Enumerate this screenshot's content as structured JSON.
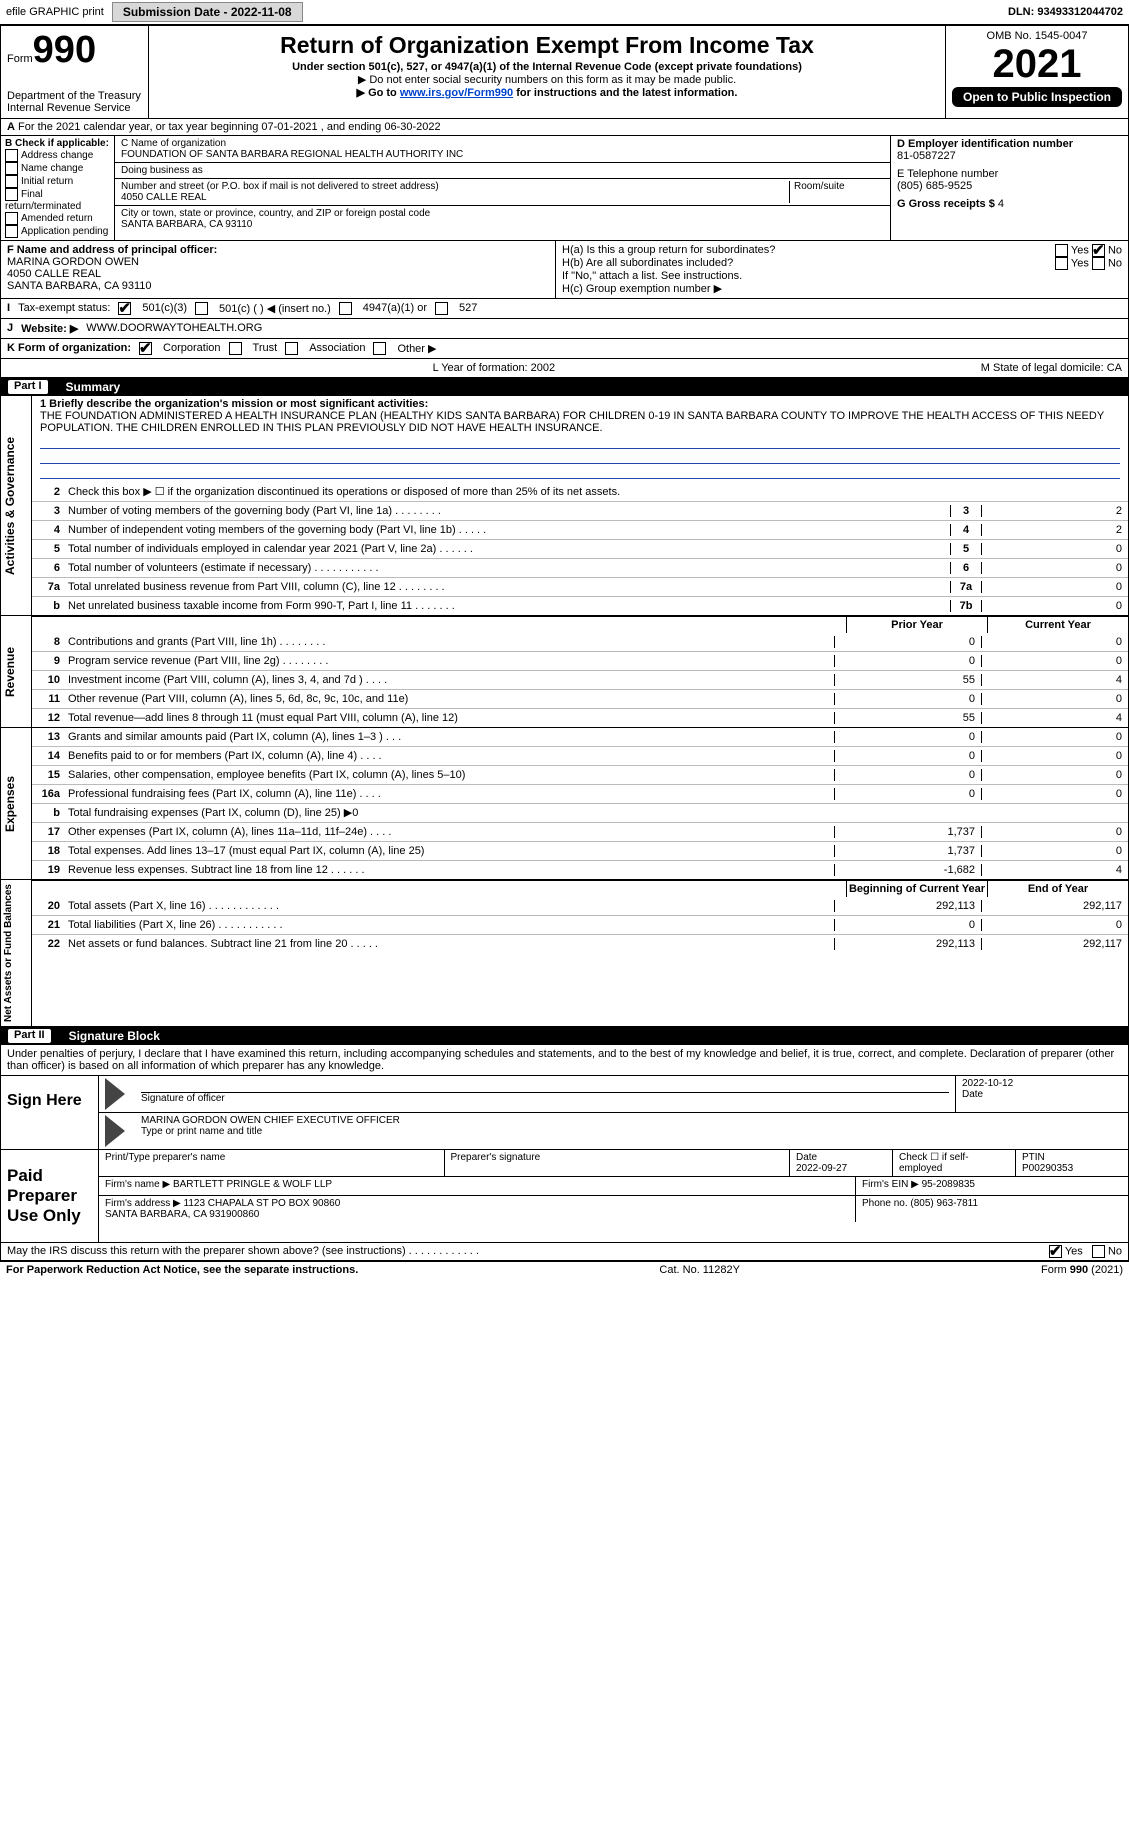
{
  "top": {
    "efile": "efile GRAPHIC print",
    "submission_label": "Submission Date - 2022-11-08",
    "dln_label": "DLN: 93493312044702"
  },
  "header": {
    "form_word": "Form",
    "form_num": "990",
    "dept": "Department of the Treasury",
    "irs": "Internal Revenue Service",
    "title": "Return of Organization Exempt From Income Tax",
    "sub1": "Under section 501(c), 527, or 4947(a)(1) of the Internal Revenue Code (except private foundations)",
    "sub2": "▶ Do not enter social security numbers on this form as it may be made public.",
    "sub3_pre": "▶ Go to ",
    "sub3_link": "www.irs.gov/Form990",
    "sub3_post": " for instructions and the latest information.",
    "omb": "OMB No. 1545-0047",
    "year": "2021",
    "open": "Open to Public Inspection"
  },
  "row_a": "For the 2021 calendar year, or tax year beginning 07-01-2021   , and ending 06-30-2022",
  "box_b": {
    "label": "B Check if applicable:",
    "items": [
      "Address change",
      "Name change",
      "Initial return",
      "Final return/terminated",
      "Amended return",
      "Application pending"
    ]
  },
  "box_c": {
    "name_label": "C Name of organization",
    "name": "FOUNDATION OF SANTA BARBARA REGIONAL HEALTH AUTHORITY INC",
    "dba_label": "Doing business as",
    "addr_label": "Number and street (or P.O. box if mail is not delivered to street address)",
    "room_label": "Room/suite",
    "addr": "4050 CALLE REAL",
    "city_label": "City or town, state or province, country, and ZIP or foreign postal code",
    "city": "SANTA BARBARA, CA  93110"
  },
  "box_d": {
    "label": "D Employer identification number",
    "ein": "81-0587227"
  },
  "box_e": {
    "label": "E Telephone number",
    "phone": "(805) 685-9525"
  },
  "box_g": {
    "label": "G Gross receipts $",
    "val": "4"
  },
  "box_f": {
    "label": "F Name and address of principal officer:",
    "name": "MARINA GORDON OWEN",
    "addr1": "4050 CALLE REAL",
    "addr2": "SANTA BARBARA, CA  93110"
  },
  "box_h": {
    "a": "H(a)  Is this a group return for subordinates?",
    "b": "H(b)  Are all subordinates included?",
    "bnote": "If \"No,\" attach a list. See instructions.",
    "c": "H(c)  Group exemption number ▶",
    "yes": "Yes",
    "no": "No"
  },
  "status": {
    "label": "Tax-exempt status:",
    "opts": [
      "501(c)(3)",
      "501(c) (  ) ◀ (insert no.)",
      "4947(a)(1) or",
      "527"
    ]
  },
  "website": {
    "label": "Website: ▶",
    "val": "WWW.DOORWAYTOHEALTH.ORG"
  },
  "row_k": {
    "label": "K Form of organization:",
    "opts": [
      "Corporation",
      "Trust",
      "Association",
      "Other ▶"
    ]
  },
  "row_l": {
    "year_label": "L Year of formation: 2002",
    "state_label": "M State of legal domicile: CA"
  },
  "part1": {
    "num": "Part I",
    "title": "Summary"
  },
  "mission": {
    "label": "1  Briefly describe the organization's mission or most significant activities:",
    "text": "THE FOUNDATION ADMINISTERED A HEALTH INSURANCE PLAN (HEALTHY KIDS SANTA BARBARA) FOR CHILDREN 0-19 IN SANTA BARBARA COUNTY TO IMPROVE THE HEALTH ACCESS OF THIS NEEDY POPULATION. THE CHILDREN ENROLLED IN THIS PLAN PREVIOUSLY DID NOT HAVE HEALTH INSURANCE."
  },
  "gov_lines": [
    {
      "n": "2",
      "d": "Check this box ▶ ☐  if the organization discontinued its operations or disposed of more than 25% of its net assets."
    },
    {
      "n": "3",
      "d": "Number of voting members of the governing body (Part VI, line 1a)  .    .    .    .    .    .    .    .",
      "box": "3",
      "v": "2"
    },
    {
      "n": "4",
      "d": "Number of independent voting members of the governing body (Part VI, line 1b)   .    .    .    .    .",
      "box": "4",
      "v": "2"
    },
    {
      "n": "5",
      "d": "Total number of individuals employed in calendar year 2021 (Part V, line 2a)   .    .    .    .    .    .",
      "box": "5",
      "v": "0"
    },
    {
      "n": "6",
      "d": "Total number of volunteers (estimate if necessary)    .    .    .    .    .    .    .    .    .    .    .",
      "box": "6",
      "v": "0"
    },
    {
      "n": "7a",
      "d": "Total unrelated business revenue from Part VIII, column (C), line 12  .    .    .    .    .    .    .    .",
      "box": "7a",
      "v": "0"
    },
    {
      "n": "b",
      "d": "Net unrelated business taxable income from Form 990-T, Part I, line 11   .    .    .    .    .    .    .",
      "box": "7b",
      "v": "0"
    }
  ],
  "year_headers": {
    "prior": "Prior Year",
    "current": "Current Year"
  },
  "rev_lines": [
    {
      "n": "8",
      "d": "Contributions and grants (Part VIII, line 1h)   .    .    .    .    .    .    .    .",
      "p": "0",
      "c": "0"
    },
    {
      "n": "9",
      "d": "Program service revenue (Part VIII, line 2g)  .    .    .    .    .    .    .    .",
      "p": "0",
      "c": "0"
    },
    {
      "n": "10",
      "d": "Investment income (Part VIII, column (A), lines 3, 4, and 7d )    .    .    .    .",
      "p": "55",
      "c": "4"
    },
    {
      "n": "11",
      "d": "Other revenue (Part VIII, column (A), lines 5, 6d, 8c, 9c, 10c, and 11e)",
      "p": "0",
      "c": "0"
    },
    {
      "n": "12",
      "d": "Total revenue—add lines 8 through 11 (must equal Part VIII, column (A), line 12)",
      "p": "55",
      "c": "4"
    }
  ],
  "exp_lines": [
    {
      "n": "13",
      "d": "Grants and similar amounts paid (Part IX, column (A), lines 1–3 )  .    .    .",
      "p": "0",
      "c": "0"
    },
    {
      "n": "14",
      "d": "Benefits paid to or for members (Part IX, column (A), line 4)   .    .    .    .",
      "p": "0",
      "c": "0"
    },
    {
      "n": "15",
      "d": "Salaries, other compensation, employee benefits (Part IX, column (A), lines 5–10)",
      "p": "0",
      "c": "0"
    },
    {
      "n": "16a",
      "d": "Professional fundraising fees (Part IX, column (A), line 11e)   .    .    .    .",
      "p": "0",
      "c": "0"
    },
    {
      "n": "b",
      "d": "Total fundraising expenses (Part IX, column (D), line 25) ▶0",
      "p": "",
      "c": "",
      "shade": true
    },
    {
      "n": "17",
      "d": "Other expenses (Part IX, column (A), lines 11a–11d, 11f–24e)    .    .    .    .",
      "p": "1,737",
      "c": "0"
    },
    {
      "n": "18",
      "d": "Total expenses. Add lines 13–17 (must equal Part IX, column (A), line 25)",
      "p": "1,737",
      "c": "0"
    },
    {
      "n": "19",
      "d": "Revenue less expenses. Subtract line 18 from line 12  .    .    .    .    .    .",
      "p": "-1,682",
      "c": "4"
    }
  ],
  "na_headers": {
    "beg": "Beginning of Current Year",
    "end": "End of Year"
  },
  "na_lines": [
    {
      "n": "20",
      "d": "Total assets (Part X, line 16)  .    .    .    .    .    .    .    .    .    .    .    .",
      "p": "292,113",
      "c": "292,117"
    },
    {
      "n": "21",
      "d": "Total liabilities (Part X, line 26)    .    .    .    .    .    .    .    .    .    .    .",
      "p": "0",
      "c": "0"
    },
    {
      "n": "22",
      "d": "Net assets or fund balances. Subtract line 21 from line 20   .    .    .    .    .",
      "p": "292,113",
      "c": "292,117"
    }
  ],
  "vtabs": {
    "gov": "Activities & Governance",
    "rev": "Revenue",
    "exp": "Expenses",
    "na": "Net Assets or Fund Balances"
  },
  "part2": {
    "num": "Part II",
    "title": "Signature Block"
  },
  "sig": {
    "decl": "Under penalties of perjury, I declare that I have examined this return, including accompanying schedules and statements, and to the best of my knowledge and belief, it is true, correct, and complete. Declaration of preparer (other than officer) is based on all information of which preparer has any knowledge.",
    "sign_here": "Sign Here",
    "sig_officer": "Signature of officer",
    "date1": "2022-10-12",
    "date_lbl": "Date",
    "typed": "MARINA GORDON OWEN  CHIEF EXECUTIVE OFFICER",
    "typed_lbl": "Type or print name and title",
    "paid": "Paid Preparer Use Only",
    "prep_name_lbl": "Print/Type preparer's name",
    "prep_sig_lbl": "Preparer's signature",
    "date2_lbl": "Date",
    "date2": "2022-09-27",
    "self_lbl": "Check ☐ if self-employed",
    "ptin_lbl": "PTIN",
    "ptin": "P00290353",
    "firm_name_lbl": "Firm's name    ▶",
    "firm_name": "BARTLETT PRINGLE & WOLF LLP",
    "firm_ein_lbl": "Firm's EIN ▶",
    "firm_ein": "95-2089835",
    "firm_addr_lbl": "Firm's address ▶",
    "firm_addr": "1123 CHAPALA ST PO BOX 90860",
    "firm_city": "SANTA BARBARA, CA  931900860",
    "firm_phone_lbl": "Phone no.",
    "firm_phone": "(805) 963-7811",
    "discuss": "May the IRS discuss this return with the preparer shown above? (see instructions)   .    .    .    .    .    .    .    .    .    .    .    .",
    "yes": "Yes",
    "no": "No"
  },
  "footer": {
    "pra": "For Paperwork Reduction Act Notice, see the separate instructions.",
    "cat": "Cat. No. 11282Y",
    "form": "Form 990 (2021)"
  },
  "colors": {
    "link": "#0044cc",
    "header_bg": "#000000",
    "shade": "#bfbfbf",
    "btn_bg": "#d8d8d8"
  }
}
